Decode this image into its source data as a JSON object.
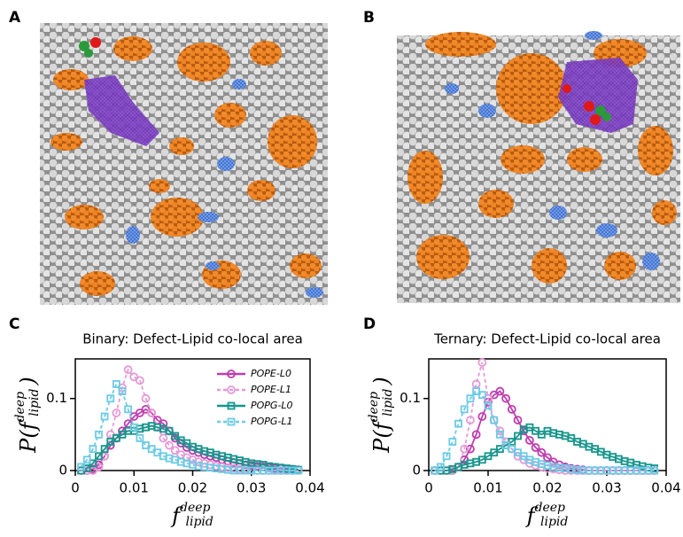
{
  "panel_labels": [
    "A",
    "B",
    "C",
    "D"
  ],
  "chart_data": [
    {
      "type": "line",
      "title": "Binary: Defect-Lipid co-local area",
      "ylabel": {
        "prefix": "P(",
        "base": "f",
        "sup": "deep",
        "sub": "lipid",
        "suffix": ")"
      },
      "xlabel": {
        "base": "f",
        "sup": "deep",
        "sub": "lipid"
      },
      "xlim": [
        0,
        0.04
      ],
      "xticks": [
        0,
        0.01,
        0.02,
        0.03,
        0.04
      ],
      "ylim": [
        0,
        0.155
      ],
      "yticks": [
        0,
        0.1
      ],
      "legend": "upper right",
      "x": [
        0.001,
        0.002,
        0.003,
        0.004,
        0.005,
        0.006,
        0.007,
        0.008,
        0.009,
        0.01,
        0.011,
        0.012,
        0.013,
        0.014,
        0.015,
        0.016,
        0.017,
        0.018,
        0.019,
        0.02,
        0.021,
        0.022,
        0.023,
        0.024,
        0.025,
        0.026,
        0.027,
        0.028,
        0.029,
        0.03,
        0.031,
        0.032,
        0.033,
        0.034,
        0.035,
        0.036,
        0.037,
        0.038
      ],
      "series": [
        {
          "name": "POPE-L0",
          "color": "#c03cb0",
          "dashed": false,
          "marker": "circle",
          "values": [
            0,
            0,
            0.002,
            0.008,
            0.02,
            0.035,
            0.045,
            0.055,
            0.065,
            0.075,
            0.08,
            0.085,
            0.08,
            0.07,
            0.065,
            0.055,
            0.045,
            0.038,
            0.032,
            0.028,
            0.025,
            0.022,
            0.02,
            0.018,
            0.015,
            0.013,
            0.011,
            0.01,
            0.008,
            0.007,
            0.006,
            0.005,
            0.004,
            0.003,
            0.003,
            0.002,
            0.002,
            0.001
          ]
        },
        {
          "name": "POPE-L1",
          "color": "#e49ad6",
          "dashed": true,
          "marker": "circle",
          "values": [
            0,
            0,
            0,
            0.005,
            0.02,
            0.05,
            0.08,
            0.115,
            0.14,
            0.13,
            0.125,
            0.1,
            0.08,
            0.06,
            0.045,
            0.035,
            0.028,
            0.022,
            0.018,
            0.015,
            0.012,
            0.01,
            0.008,
            0.006,
            0.005,
            0.004,
            0.003,
            0.002,
            0.002,
            0.001,
            0,
            0,
            0,
            0,
            0,
            0,
            0,
            0
          ]
        },
        {
          "name": "POPG-L0",
          "color": "#16968c",
          "dashed": false,
          "marker": "square",
          "values": [
            0,
            0.003,
            0.01,
            0.02,
            0.03,
            0.04,
            0.045,
            0.05,
            0.055,
            0.055,
            0.058,
            0.06,
            0.062,
            0.06,
            0.058,
            0.055,
            0.048,
            0.042,
            0.038,
            0.033,
            0.03,
            0.027,
            0.025,
            0.022,
            0.02,
            0.018,
            0.016,
            0.014,
            0.012,
            0.01,
            0.009,
            0.008,
            0.006,
            0.005,
            0.004,
            0.003,
            0.002,
            0.001
          ]
        },
        {
          "name": "POPG-L1",
          "color": "#6ccbe6",
          "dashed": true,
          "marker": "square",
          "values": [
            0.005,
            0.015,
            0.03,
            0.05,
            0.075,
            0.1,
            0.12,
            0.11,
            0.085,
            0.06,
            0.045,
            0.035,
            0.03,
            0.025,
            0.02,
            0.017,
            0.015,
            0.012,
            0.01,
            0.008,
            0.006,
            0.005,
            0.004,
            0.003,
            0.002,
            0.001,
            0,
            0,
            0,
            0,
            0,
            0,
            0,
            0,
            0,
            0,
            0,
            0
          ]
        }
      ]
    },
    {
      "type": "line",
      "title": "Ternary: Defect-Lipid co-local area",
      "ylabel": {
        "prefix": "P(",
        "base": "f",
        "sup": "deep",
        "sub": "lipid",
        "suffix": ")"
      },
      "xlabel": {
        "base": "f",
        "sup": "deep",
        "sub": "lipid"
      },
      "xlim": [
        0,
        0.04
      ],
      "xticks": [
        0,
        0.01,
        0.02,
        0.03,
        0.04
      ],
      "ylim": [
        0,
        0.155
      ],
      "yticks": [
        0,
        0.1
      ],
      "x": [
        0.001,
        0.002,
        0.003,
        0.004,
        0.005,
        0.006,
        0.007,
        0.008,
        0.009,
        0.01,
        0.011,
        0.012,
        0.013,
        0.014,
        0.015,
        0.016,
        0.017,
        0.018,
        0.019,
        0.02,
        0.021,
        0.022,
        0.023,
        0.024,
        0.025,
        0.026,
        0.027,
        0.028,
        0.029,
        0.03,
        0.031,
        0.032,
        0.033,
        0.034,
        0.035,
        0.036,
        0.037,
        0.038
      ],
      "series": [
        {
          "color": "#c03cb0",
          "dashed": false,
          "marker": "circle",
          "values": [
            0,
            0,
            0,
            0,
            0.005,
            0.015,
            0.03,
            0.05,
            0.075,
            0.095,
            0.105,
            0.11,
            0.1,
            0.085,
            0.07,
            0.055,
            0.042,
            0.032,
            0.025,
            0.018,
            0.012,
            0.008,
            0.005,
            0.003,
            0.002,
            0.001,
            0,
            0,
            0,
            0,
            0,
            0,
            0,
            0,
            0,
            0,
            0,
            0
          ]
        },
        {
          "color": "#e49ad6",
          "dashed": true,
          "marker": "circle",
          "values": [
            0,
            0,
            0,
            0,
            0.005,
            0.03,
            0.07,
            0.12,
            0.15,
            0.1,
            0.07,
            0.055,
            0.04,
            0.03,
            0.02,
            0.015,
            0.01,
            0.007,
            0.005,
            0.003,
            0.002,
            0.001,
            0,
            0,
            0,
            0,
            0,
            0,
            0,
            0,
            0,
            0,
            0,
            0,
            0,
            0,
            0,
            0
          ]
        },
        {
          "color": "#16968c",
          "dashed": false,
          "marker": "square",
          "values": [
            0,
            0,
            0,
            0.002,
            0.005,
            0.008,
            0.01,
            0.012,
            0.015,
            0.02,
            0.025,
            0.03,
            0.035,
            0.04,
            0.048,
            0.057,
            0.06,
            0.055,
            0.05,
            0.055,
            0.052,
            0.05,
            0.048,
            0.045,
            0.04,
            0.037,
            0.033,
            0.03,
            0.026,
            0.022,
            0.019,
            0.016,
            0.013,
            0.011,
            0.008,
            0.006,
            0.004,
            0.003
          ]
        },
        {
          "color": "#6ccbe6",
          "dashed": true,
          "marker": "square",
          "values": [
            0,
            0.005,
            0.02,
            0.04,
            0.065,
            0.085,
            0.1,
            0.11,
            0.105,
            0.09,
            0.07,
            0.05,
            0.035,
            0.03,
            0.025,
            0.02,
            0.015,
            0.012,
            0.009,
            0.007,
            0.005,
            0.004,
            0.003,
            0.002,
            0.001,
            0,
            0,
            0,
            0,
            0,
            0,
            0,
            0,
            0,
            0,
            0,
            0,
            0
          ]
        }
      ]
    }
  ]
}
